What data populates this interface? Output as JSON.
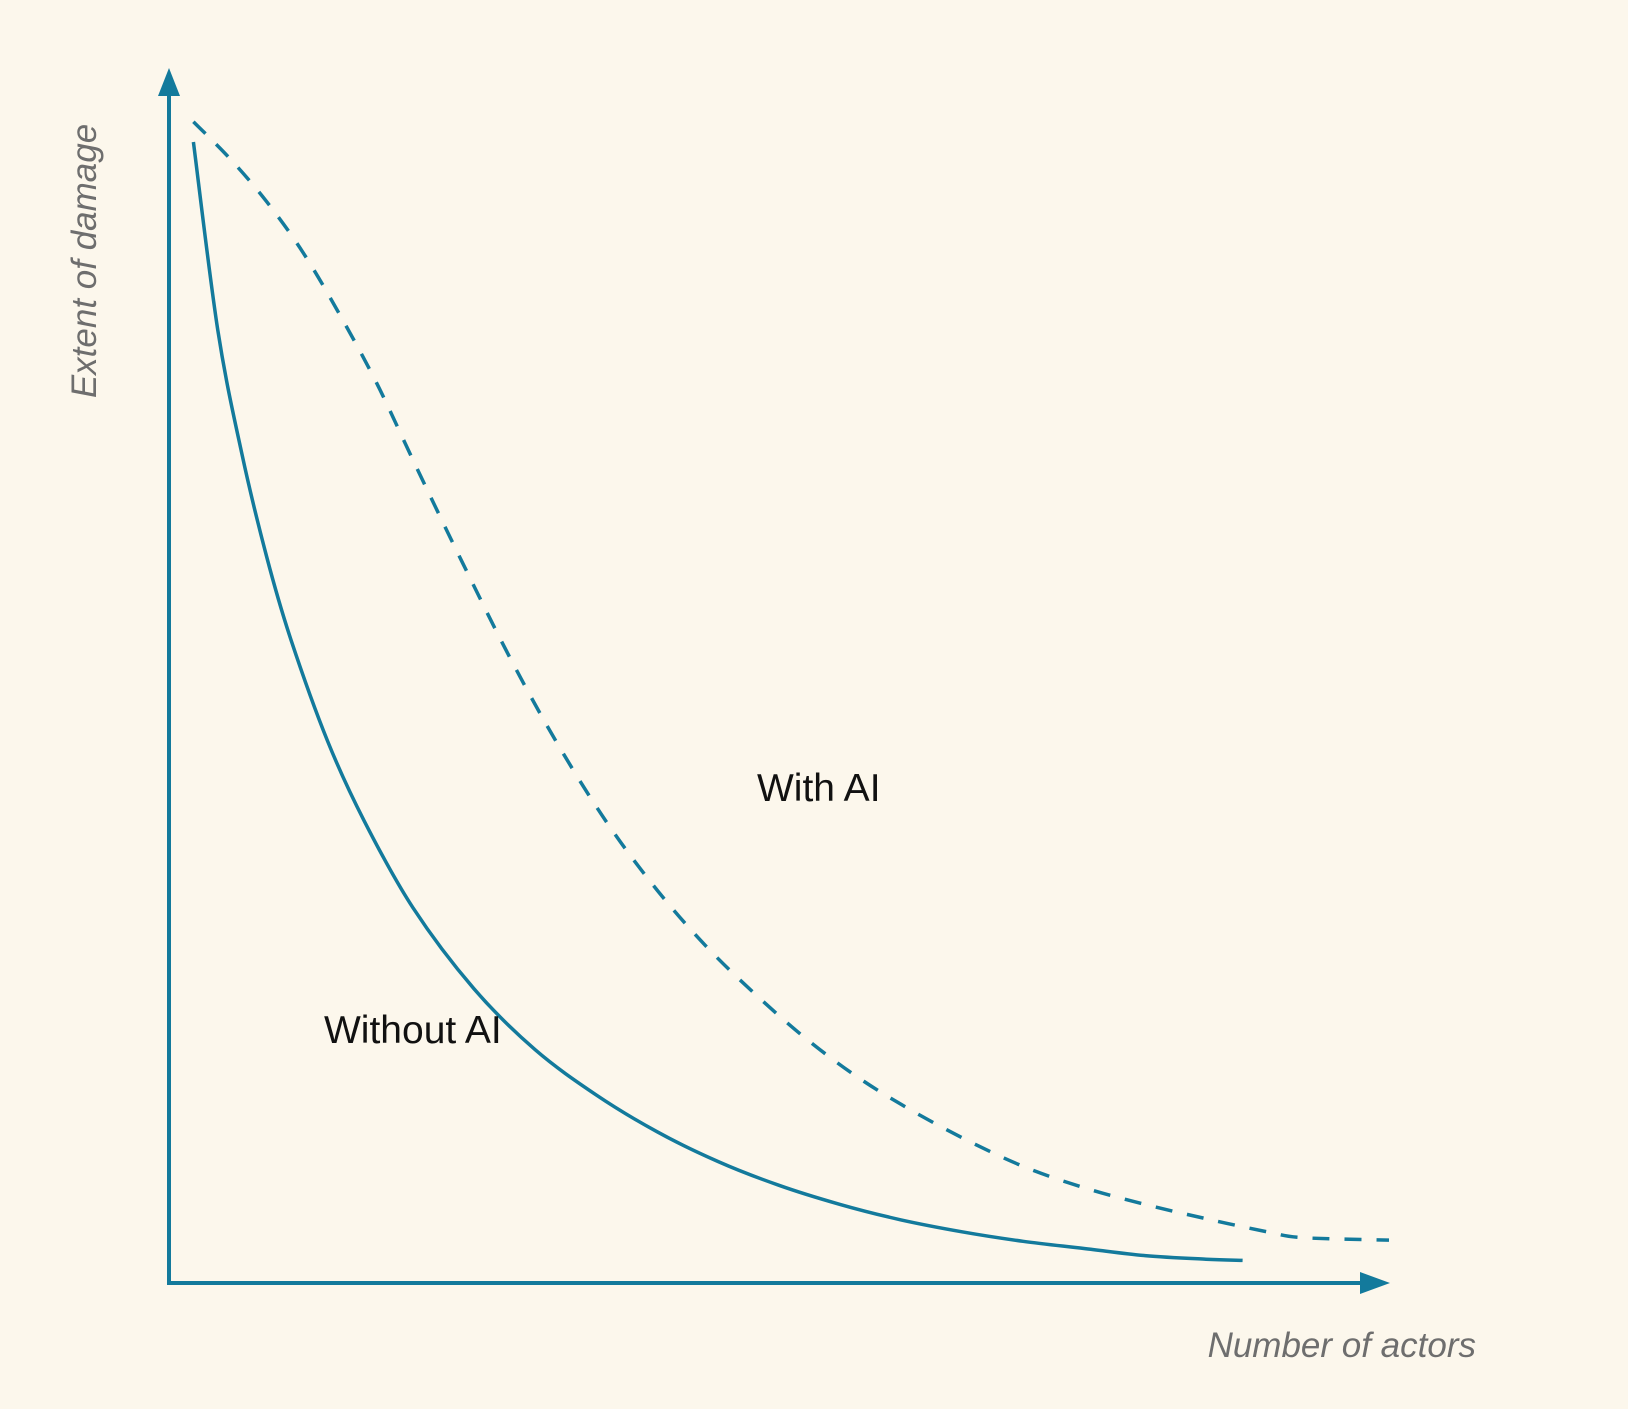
{
  "chart_data": {
    "type": "line",
    "title": "",
    "xlabel": "Number of actors",
    "ylabel": "Extent of damage",
    "xlim": [
      0,
      100
    ],
    "ylim": [
      0,
      100
    ],
    "grid": false,
    "legend": "none",
    "axis_color": "#137a9c",
    "series": [
      {
        "name": "Without AI",
        "style": "solid",
        "color": "#137a9c",
        "x": [
          2,
          4,
          6,
          8,
          10,
          13,
          16,
          20,
          25,
          30,
          35,
          40,
          45,
          50,
          55,
          60,
          65,
          70,
          75,
          80,
          85,
          88
        ],
        "y": [
          95.8,
          80,
          69.5,
          61,
          54,
          45.5,
          38.8,
          31.5,
          24.7,
          19.6,
          15.8,
          12.7,
          10.2,
          8.2,
          6.6,
          5.3,
          4.3,
          3.5,
          2.9,
          2.3,
          2.0,
          1.9
        ]
      },
      {
        "name": "With AI",
        "style": "dashed",
        "color": "#137a9c",
        "x": [
          2,
          5,
          8,
          11,
          14,
          17,
          20,
          24,
          28,
          32,
          36,
          40,
          44,
          48,
          52,
          56,
          60,
          65,
          70,
          75,
          80,
          85,
          90,
          93,
          100
        ],
        "y": [
          97.5,
          94.4,
          90.8,
          86.5,
          81.3,
          75.6,
          69.1,
          60.6,
          52.4,
          45,
          38.5,
          33,
          28.3,
          24.3,
          20.7,
          17.6,
          15,
          12.2,
          9.8,
          8,
          6.6,
          5.4,
          4.3,
          3.8,
          3.6
        ]
      }
    ]
  }
}
